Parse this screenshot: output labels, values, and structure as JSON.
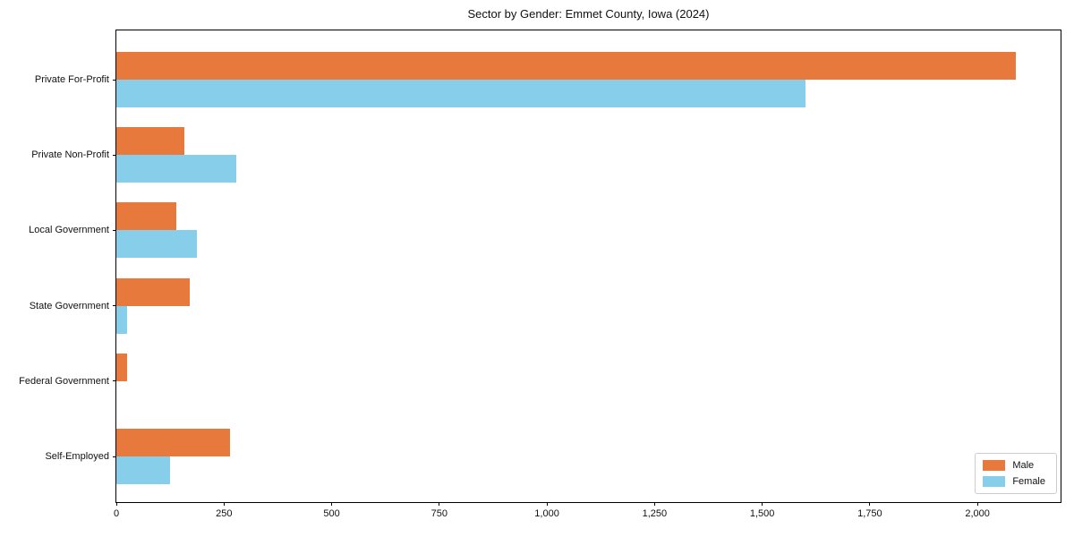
{
  "title": "Sector by Gender: Emmet County, Iowa (2024)",
  "chart_data": {
    "type": "bar",
    "orientation": "horizontal",
    "title": "Sector by Gender: Emmet County, Iowa (2024)",
    "xlabel": "",
    "ylabel": "",
    "categories": [
      "Private For-Profit",
      "Private Non-Profit",
      "Local Government",
      "State Government",
      "Federal Government",
      "Self-Employed"
    ],
    "series": [
      {
        "name": "Male",
        "color": "#e8793d",
        "values": [
          2090,
          158,
          139,
          170,
          25,
          263
        ]
      },
      {
        "name": "Female",
        "color": "#87ceeb",
        "values": [
          1600,
          278,
          187,
          25,
          0,
          124
        ]
      }
    ],
    "xlim": [
      0,
      2193
    ],
    "xticks": [
      0,
      250,
      500,
      750,
      1000,
      1250,
      1500,
      1750,
      2000
    ],
    "xtick_labels": [
      "0",
      "250",
      "500",
      "750",
      "1,000",
      "1,250",
      "1,500",
      "1,750",
      "2,000"
    ],
    "grid": false,
    "legend_position": "lower right",
    "background": "#ffffff",
    "axis_color": "#000000"
  }
}
